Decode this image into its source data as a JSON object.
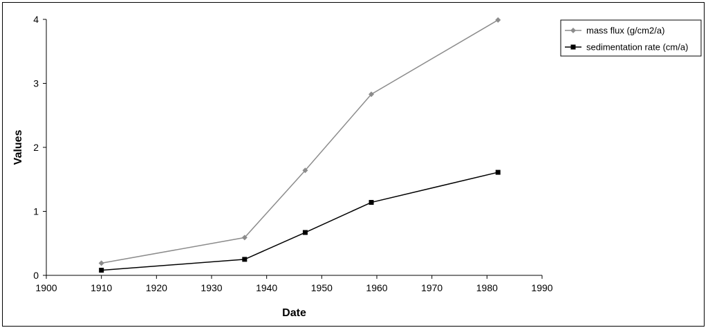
{
  "chart_data": {
    "type": "line",
    "title": "",
    "xlabel": "Date",
    "ylabel": "Values",
    "xlim": [
      1900,
      1990
    ],
    "ylim": [
      0,
      4
    ],
    "x_ticks": [
      1900,
      1910,
      1920,
      1930,
      1940,
      1950,
      1960,
      1970,
      1980,
      1990
    ],
    "y_ticks": [
      0,
      1,
      2,
      3,
      4
    ],
    "grid": false,
    "legend_position": "top-right",
    "series": [
      {
        "name": "mass flux (g/cm2/a)",
        "color": "#8c8c8c",
        "marker": "diamond",
        "x": [
          1910,
          1936,
          1947,
          1959,
          1982
        ],
        "y": [
          0.19,
          0.59,
          1.64,
          2.83,
          3.99
        ]
      },
      {
        "name": "sedimentation rate (cm/a)",
        "color": "#000000",
        "marker": "square",
        "x": [
          1910,
          1936,
          1947,
          1959,
          1982
        ],
        "y": [
          0.08,
          0.25,
          0.67,
          1.14,
          1.61
        ]
      }
    ]
  }
}
